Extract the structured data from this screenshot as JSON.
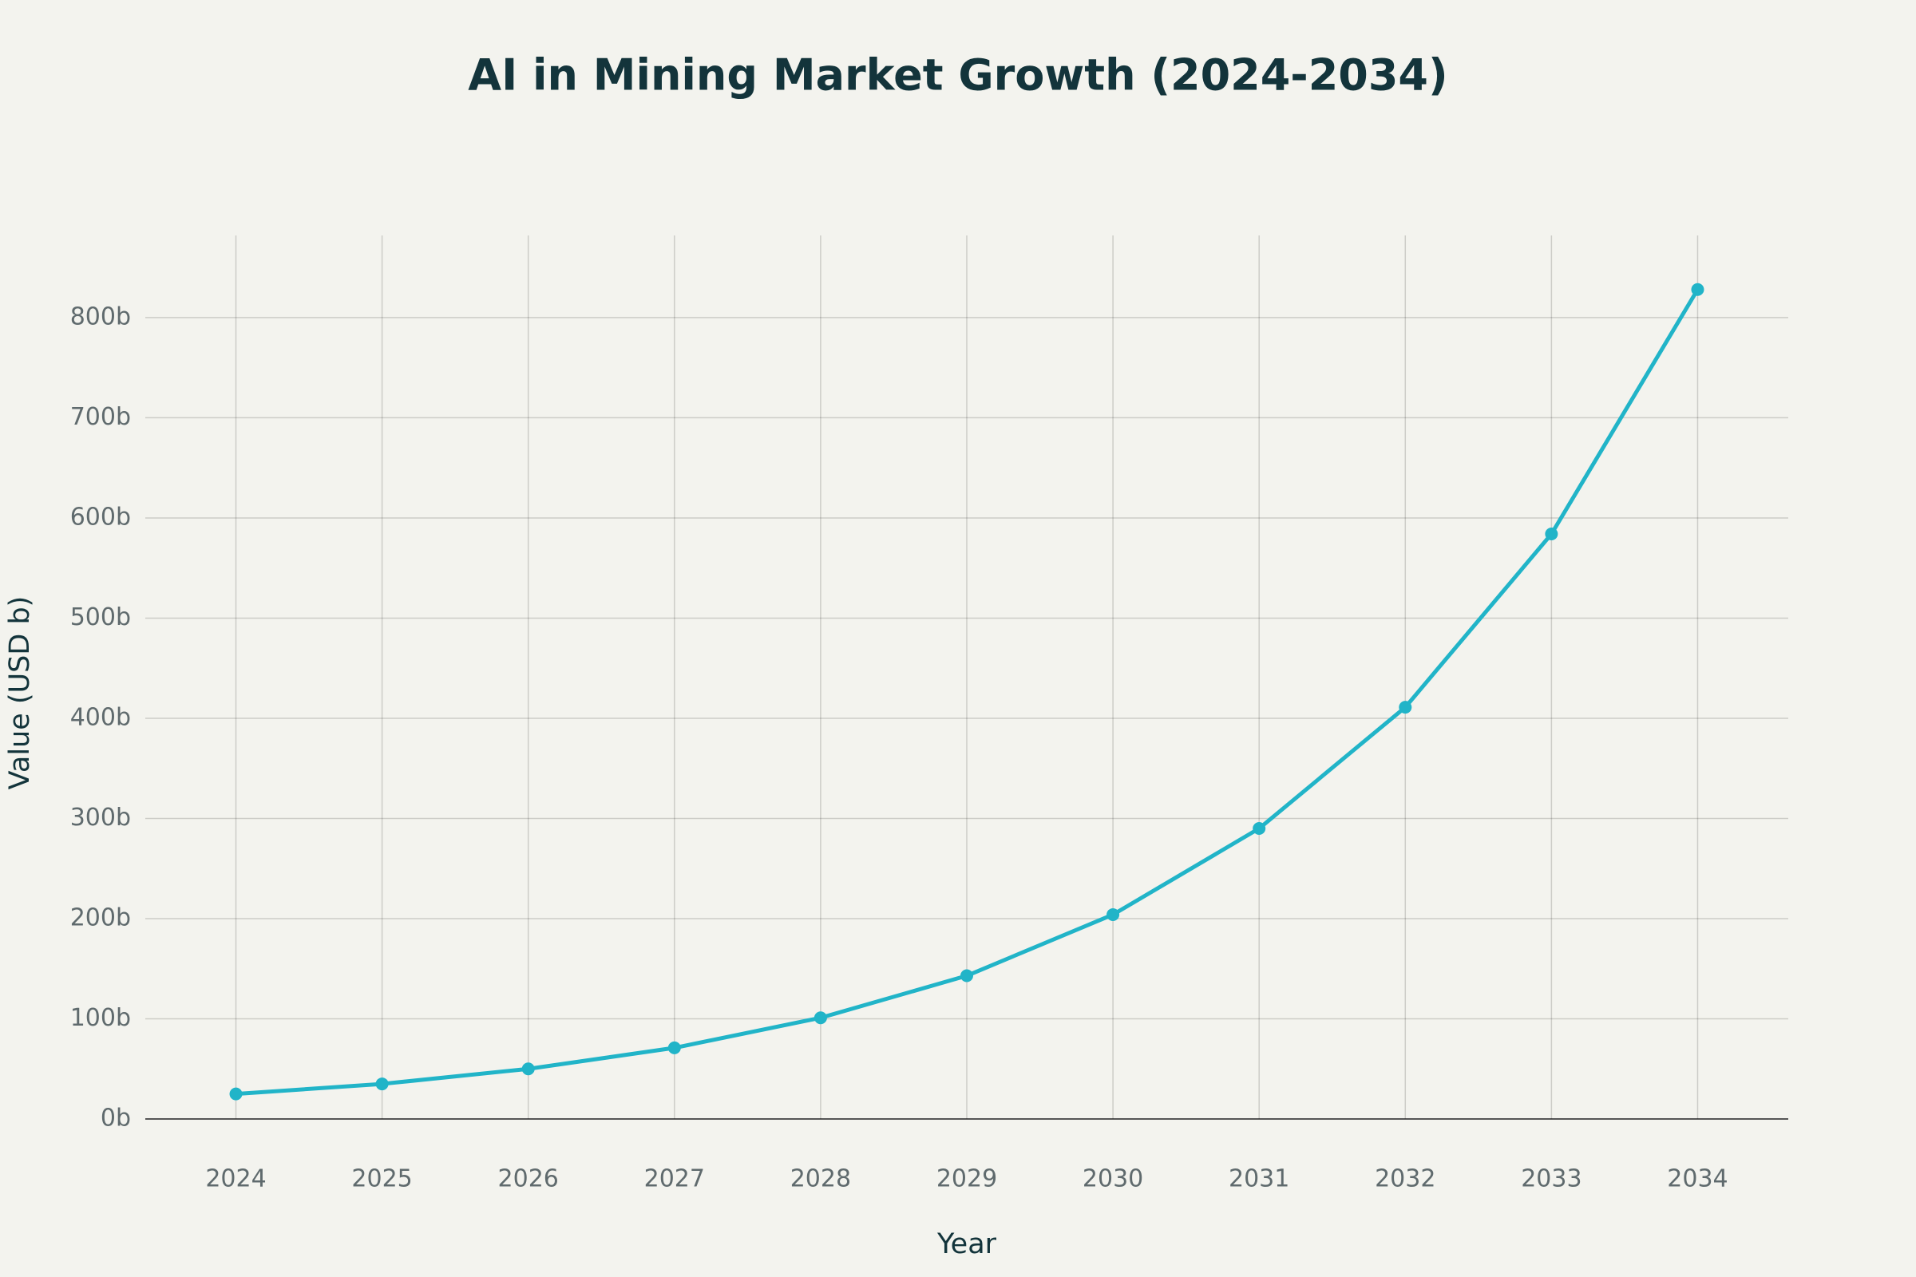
{
  "chart_data": {
    "type": "line",
    "title": "AI in Mining Market Growth (2024-2034)",
    "x_label": "Year",
    "y_label": "Value (USD b)",
    "x": [
      2024,
      2025,
      2026,
      2027,
      2028,
      2029,
      2030,
      2031,
      2032,
      2033,
      2034
    ],
    "values": [
      25,
      35,
      50,
      71,
      101,
      143,
      204,
      290,
      411,
      584,
      828
    ],
    "color": "#21b4c8",
    "xlim": [
      2023.38,
      2034.62
    ],
    "xticks": [
      2024,
      2025,
      2026,
      2027,
      2028,
      2029,
      2030,
      2031,
      2032,
      2033,
      2034
    ],
    "ylim": [
      0,
      882
    ],
    "yticks": [
      {
        "value": 0,
        "label": "0b"
      },
      {
        "value": 100,
        "label": "100b"
      },
      {
        "value": 200,
        "label": "200b"
      },
      {
        "value": 300,
        "label": "300b"
      },
      {
        "value": 400,
        "label": "400b"
      },
      {
        "value": 500,
        "label": "500b"
      },
      {
        "value": 600,
        "label": "600b"
      },
      {
        "value": 700,
        "label": "700b"
      },
      {
        "value": 800,
        "label": "800b"
      }
    ],
    "grid": true
  }
}
